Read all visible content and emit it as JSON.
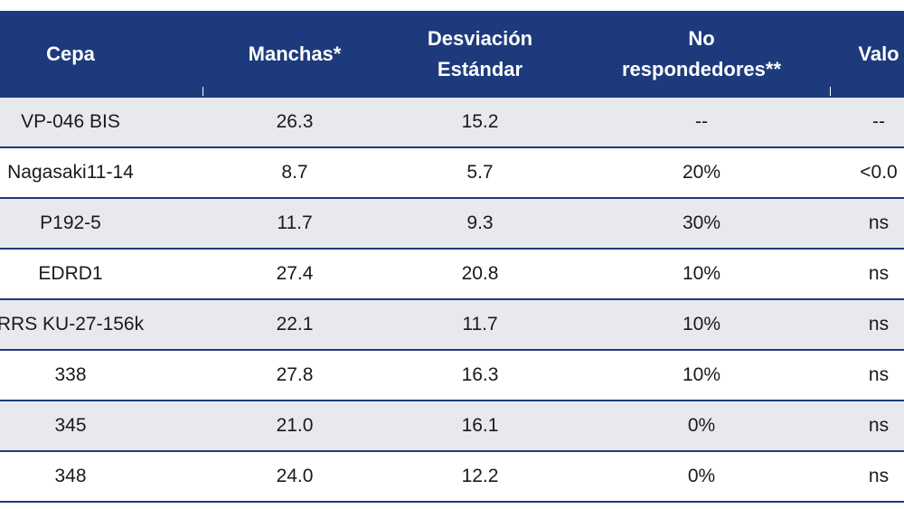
{
  "table": {
    "header": [
      "Cepa",
      "Manchas*",
      "Desviación\nEstándar",
      "No\nrespondedores**",
      "Valo"
    ],
    "rows": [
      [
        "VP-046 BIS",
        "26.3",
        "15.2",
        "--",
        "--"
      ],
      [
        "Nagasaki11-14",
        "8.7",
        "5.7",
        "20%",
        "<0.0"
      ],
      [
        "P192-5",
        "11.7",
        "9.3",
        "30%",
        "ns"
      ],
      [
        "EDRD1",
        "27.4",
        "20.8",
        "10%",
        "ns"
      ],
      [
        "RRS KU-27-156k",
        "22.1",
        "11.7",
        "10%",
        "ns"
      ],
      [
        "338",
        "27.8",
        "16.3",
        "10%",
        "ns"
      ],
      [
        "345",
        "21.0",
        "16.1",
        "0%",
        "ns"
      ],
      [
        "348",
        "24.0",
        "12.2",
        "0%",
        "ns"
      ]
    ]
  }
}
